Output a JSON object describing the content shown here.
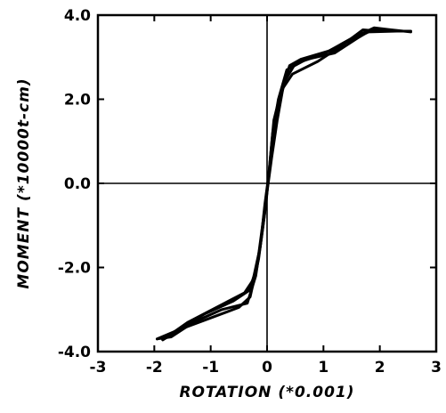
{
  "chart_data": {
    "type": "line",
    "title": "",
    "xlabel": "ROTATION (*0.001)",
    "ylabel": "MOMENT (*10000t-cm)",
    "xlim": [
      -3,
      3
    ],
    "ylim": [
      -4.0,
      4.0
    ],
    "x_ticks": [
      -3,
      -2,
      -1,
      0,
      1,
      2,
      3
    ],
    "x_tick_labels": [
      "-3",
      "-2",
      "-1",
      "0",
      "1",
      "2",
      "3"
    ],
    "y_ticks": [
      -4.0,
      -2.0,
      0.0,
      2.0,
      4.0
    ],
    "y_tick_labels": [
      "-4.0",
      "-2.0",
      "0.0",
      "2.0",
      "4.0"
    ],
    "zero_lines": true,
    "grid": false,
    "series": [
      {
        "values_xy": [
          [
            -1.95,
            -3.7
          ],
          [
            -1.7,
            -3.65
          ],
          [
            -1.3,
            -3.3
          ],
          [
            -0.8,
            -3.0
          ],
          [
            -0.35,
            -2.85
          ],
          [
            -0.2,
            -2.2
          ],
          [
            -0.1,
            -1.3
          ],
          [
            -0.02,
            -0.5
          ],
          [
            0.05,
            0.5
          ],
          [
            0.12,
            1.5
          ],
          [
            0.25,
            2.2
          ],
          [
            0.45,
            2.6
          ],
          [
            0.9,
            2.9
          ],
          [
            1.3,
            3.25
          ],
          [
            1.7,
            3.65
          ],
          [
            2.0,
            3.62
          ],
          [
            2.55,
            3.62
          ]
        ]
      },
      {
        "values_xy": [
          [
            2.55,
            3.6
          ],
          [
            2.2,
            3.65
          ],
          [
            1.9,
            3.7
          ],
          [
            1.5,
            3.45
          ],
          [
            1.1,
            3.15
          ],
          [
            0.6,
            2.95
          ],
          [
            0.4,
            2.8
          ],
          [
            0.25,
            2.1
          ],
          [
            0.12,
            1.2
          ],
          [
            0.04,
            0.3
          ],
          [
            -0.04,
            -0.5
          ],
          [
            -0.12,
            -1.5
          ],
          [
            -0.25,
            -2.3
          ],
          [
            -0.4,
            -2.6
          ],
          [
            -0.9,
            -2.95
          ],
          [
            -1.4,
            -3.3
          ],
          [
            -1.85,
            -3.72
          ]
        ]
      },
      {
        "values_xy": [
          [
            -1.85,
            -3.72
          ],
          [
            -1.5,
            -3.45
          ],
          [
            -1.0,
            -3.2
          ],
          [
            -0.5,
            -2.95
          ],
          [
            -0.3,
            -2.7
          ],
          [
            -0.15,
            -1.8
          ],
          [
            -0.05,
            -0.8
          ],
          [
            0.03,
            0.2
          ],
          [
            0.1,
            1.2
          ],
          [
            0.2,
            2.0
          ],
          [
            0.35,
            2.7
          ],
          [
            0.7,
            2.95
          ],
          [
            1.2,
            3.1
          ],
          [
            1.6,
            3.45
          ],
          [
            1.85,
            3.65
          ],
          [
            2.3,
            3.62
          ]
        ]
      },
      {
        "values_xy": [
          [
            2.3,
            3.62
          ],
          [
            1.8,
            3.6
          ],
          [
            1.4,
            3.35
          ],
          [
            0.95,
            3.05
          ],
          [
            0.5,
            2.85
          ],
          [
            0.3,
            2.4
          ],
          [
            0.18,
            1.5
          ],
          [
            0.08,
            0.6
          ],
          [
            0.0,
            -0.2
          ],
          [
            -0.08,
            -1.0
          ],
          [
            -0.18,
            -2.0
          ],
          [
            -0.32,
            -2.55
          ],
          [
            -0.6,
            -2.8
          ],
          [
            -1.1,
            -3.1
          ],
          [
            -1.6,
            -3.5
          ],
          [
            -1.95,
            -3.7
          ]
        ]
      }
    ]
  }
}
